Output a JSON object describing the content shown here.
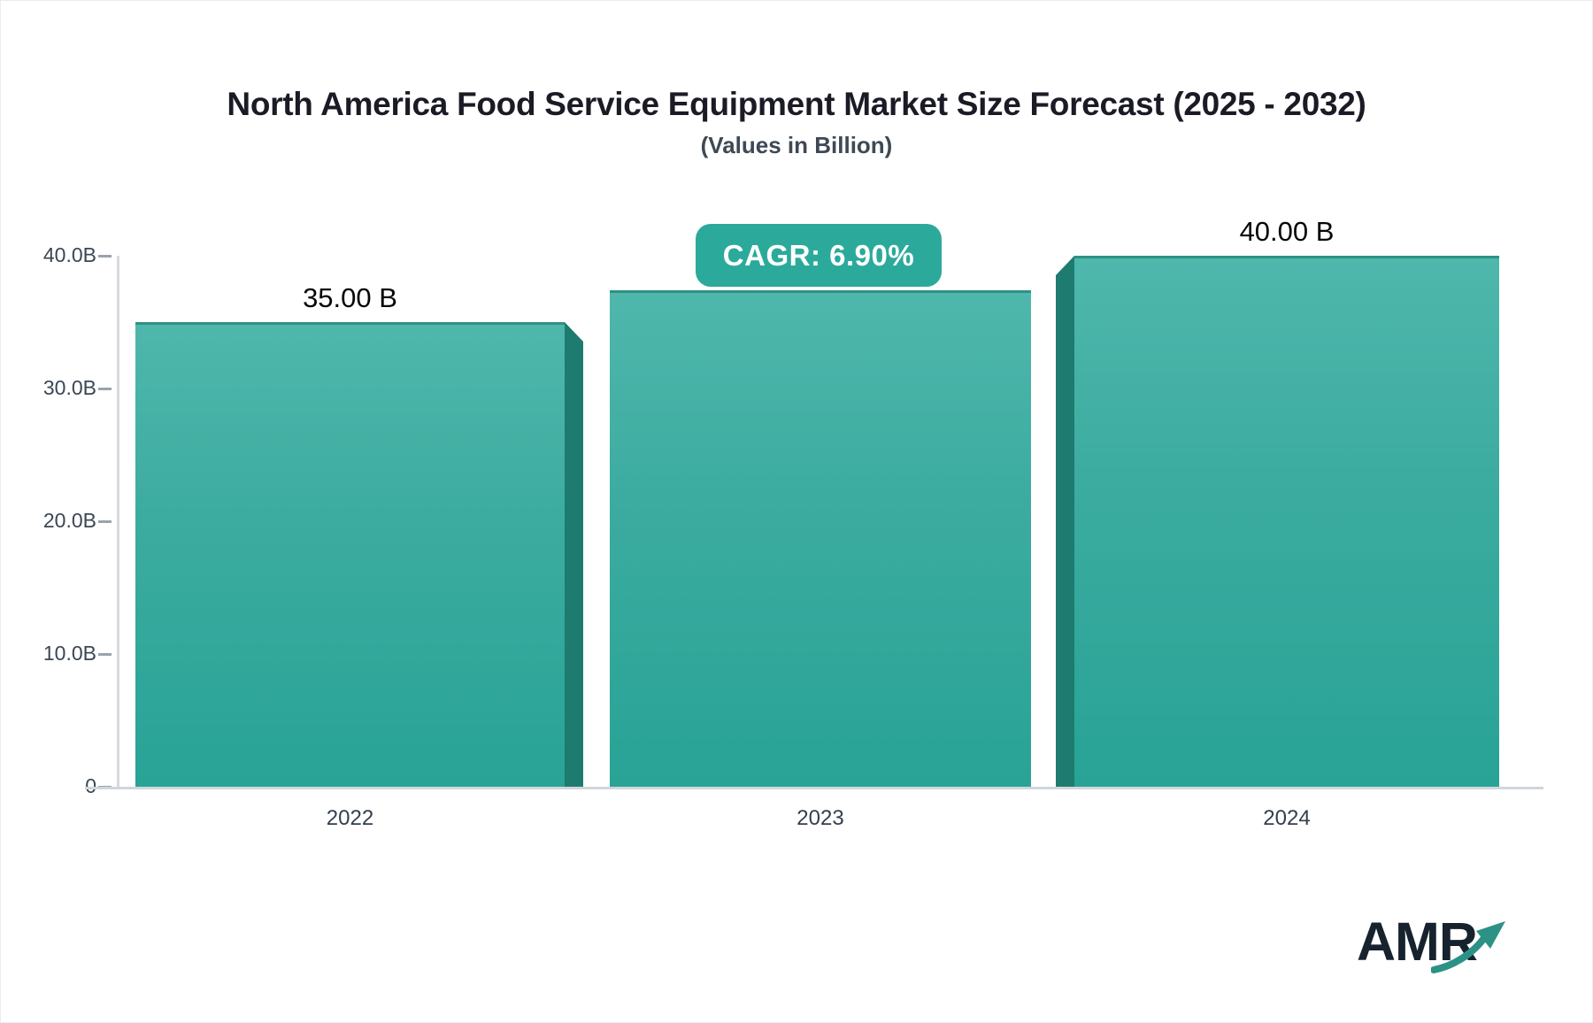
{
  "chart_data": {
    "type": "bar",
    "title": "North America Food Service Equipment Market Size Forecast (2025 - 2032)",
    "subtitle": "(Values in Billion)",
    "categories": [
      "2022",
      "2023",
      "2024"
    ],
    "values": [
      35.0,
      37.4,
      40.0
    ],
    "bar_value_labels": [
      "35.00 B",
      null,
      "40.00 B"
    ],
    "cagr_label": "CAGR: 6.90%",
    "yticks": [
      {
        "label": "0",
        "value": 0
      },
      {
        "label": "10.0B",
        "value": 10
      },
      {
        "label": "20.0B",
        "value": 20
      },
      {
        "label": "30.0B",
        "value": 30
      },
      {
        "label": "40.0B",
        "value": 40
      }
    ],
    "ylim": [
      0,
      40
    ],
    "grid": false,
    "legend": false
  },
  "logo": {
    "text": "AMR"
  },
  "colors": {
    "bar_top": "#4fb7ac",
    "bar_bottom": "#28a396",
    "bar_side_shadow": "#1e7b6f",
    "bar_top_edge": "#2e9184",
    "badge_background": "#2baa9b",
    "badge_text": "#ffffff",
    "title_text": "#1b1b26",
    "axis_text": "#3b4754",
    "axis_line": "#d1d5db",
    "logo_text": "#16222d",
    "logo_arrow": "#2d9186"
  }
}
